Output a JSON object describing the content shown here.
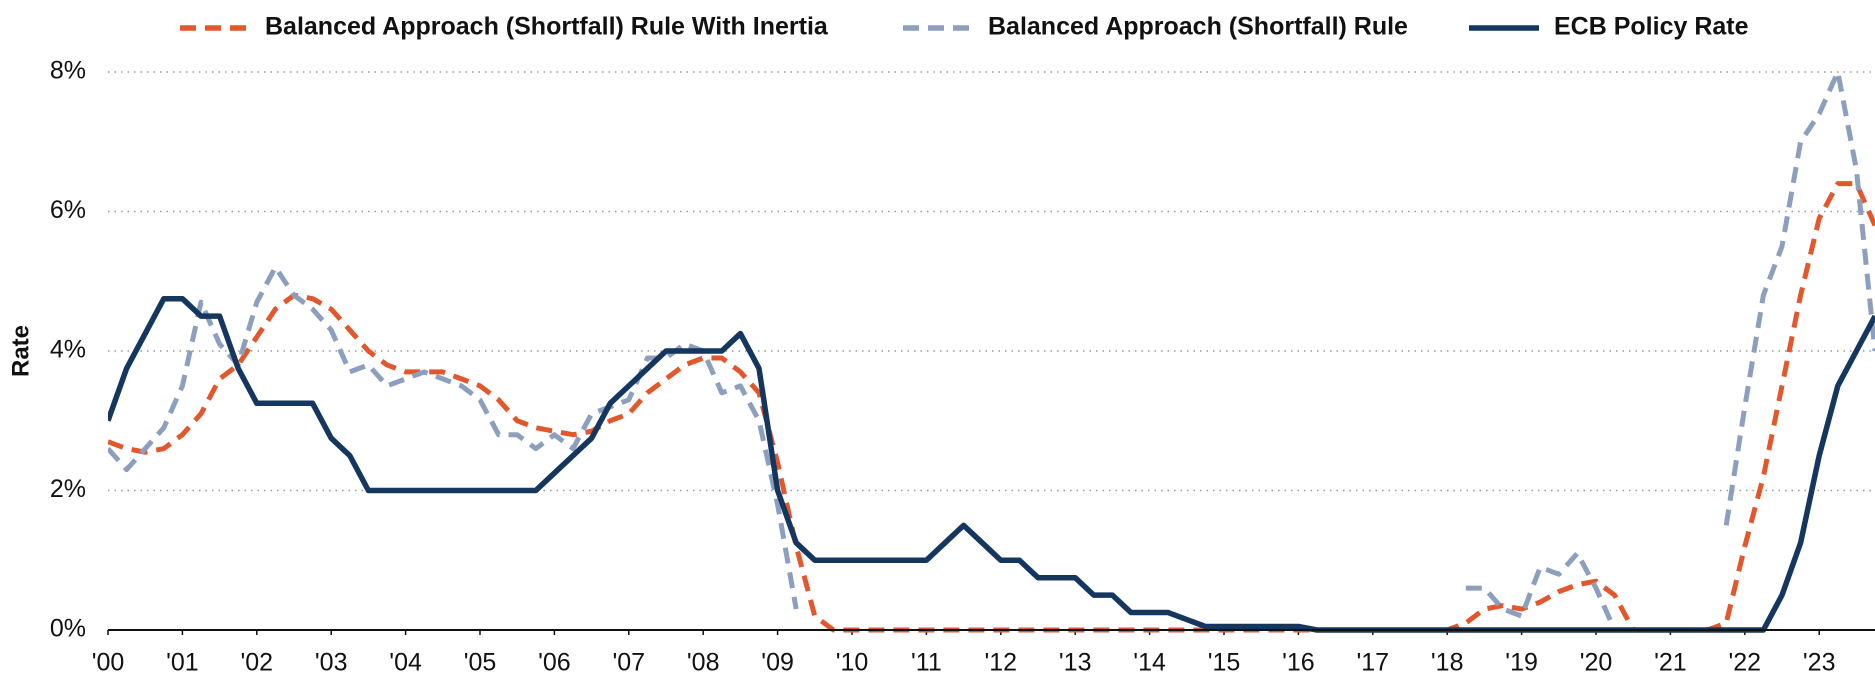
{
  "chart_data": {
    "type": "line",
    "ylabel": "Rate",
    "xlim": [
      2000,
      2023.75
    ],
    "xticks": [
      {
        "value": 2000,
        "label": "'00"
      },
      {
        "value": 2001,
        "label": "'01"
      },
      {
        "value": 2002,
        "label": "'02"
      },
      {
        "value": 2003,
        "label": "'03"
      },
      {
        "value": 2004,
        "label": "'04"
      },
      {
        "value": 2005,
        "label": "'05"
      },
      {
        "value": 2006,
        "label": "'06"
      },
      {
        "value": 2007,
        "label": "'07"
      },
      {
        "value": 2008,
        "label": "'08"
      },
      {
        "value": 2009,
        "label": "'09"
      },
      {
        "value": 2010,
        "label": "'10"
      },
      {
        "value": 2011,
        "label": "'11"
      },
      {
        "value": 2012,
        "label": "'12"
      },
      {
        "value": 2013,
        "label": "'13"
      },
      {
        "value": 2014,
        "label": "'14"
      },
      {
        "value": 2015,
        "label": "'15"
      },
      {
        "value": 2016,
        "label": "'16"
      },
      {
        "value": 2017,
        "label": "'17"
      },
      {
        "value": 2018,
        "label": "'18"
      },
      {
        "value": 2019,
        "label": "'19"
      },
      {
        "value": 2020,
        "label": "'20"
      },
      {
        "value": 2021,
        "label": "'21"
      },
      {
        "value": 2022,
        "label": "'22"
      },
      {
        "value": 2023,
        "label": "'23"
      }
    ],
    "ylim": [
      0,
      8
    ],
    "yticks": [
      {
        "value": 0,
        "label": "0%"
      },
      {
        "value": 2,
        "label": "2%"
      },
      {
        "value": 4,
        "label": "4%"
      },
      {
        "value": 6,
        "label": "6%"
      },
      {
        "value": 8,
        "label": "8%"
      }
    ],
    "grid": true,
    "legend": "top",
    "x": [
      2000,
      2000.25,
      2000.5,
      2000.75,
      2001,
      2001.25,
      2001.5,
      2001.75,
      2002,
      2002.25,
      2002.5,
      2002.75,
      2003,
      2003.25,
      2003.5,
      2003.75,
      2004,
      2004.25,
      2004.5,
      2004.75,
      2005,
      2005.25,
      2005.5,
      2005.75,
      2006,
      2006.25,
      2006.5,
      2006.75,
      2007,
      2007.25,
      2007.5,
      2007.75,
      2008,
      2008.25,
      2008.5,
      2008.75,
      2009,
      2009.25,
      2009.5,
      2009.75,
      2010,
      2010.25,
      2010.5,
      2010.75,
      2011,
      2011.25,
      2011.5,
      2011.75,
      2012,
      2012.25,
      2012.5,
      2012.75,
      2013,
      2013.25,
      2013.5,
      2013.75,
      2014,
      2014.25,
      2014.5,
      2014.75,
      2015,
      2015.25,
      2015.5,
      2015.75,
      2016,
      2016.25,
      2016.5,
      2016.75,
      2017,
      2017.25,
      2017.5,
      2017.75,
      2018,
      2018.25,
      2018.5,
      2018.75,
      2019,
      2019.25,
      2019.5,
      2019.75,
      2020,
      2020.25,
      2020.5,
      2020.75,
      2021,
      2021.25,
      2021.5,
      2021.75,
      2022,
      2022.25,
      2022.5,
      2022.75,
      2023,
      2023.25,
      2023.5,
      2023.75
    ],
    "series": [
      {
        "name": "Balanced Approach (Shortfall) Rule With Inertia",
        "color": "#e2572b",
        "dashed": true,
        "values": [
          2.7,
          2.6,
          2.55,
          2.6,
          2.8,
          3.1,
          3.6,
          3.8,
          4.2,
          4.6,
          4.8,
          4.75,
          4.6,
          4.3,
          4.0,
          3.8,
          3.7,
          3.7,
          3.7,
          3.6,
          3.5,
          3.3,
          3.0,
          2.9,
          2.85,
          2.8,
          2.85,
          3.0,
          3.1,
          3.4,
          3.6,
          3.8,
          3.9,
          3.9,
          3.7,
          3.4,
          2.4,
          1.2,
          0.2,
          0,
          0,
          0,
          0,
          0,
          0,
          0,
          0,
          0,
          0,
          0,
          0,
          0,
          0,
          0,
          0,
          0,
          0,
          0,
          0,
          0,
          0,
          0,
          0,
          0,
          0,
          0,
          0,
          0,
          0,
          0,
          0,
          0,
          0,
          0.1,
          0.3,
          0.35,
          0.3,
          0.4,
          0.55,
          0.65,
          0.7,
          0.5,
          0,
          0,
          0,
          0,
          0,
          0.1,
          1.2,
          2.2,
          3.5,
          4.8,
          5.9,
          6.4,
          6.4,
          5.8
        ]
      },
      {
        "name": "Balanced Approach (Shortfall) Rule",
        "color": "#8d9fbf",
        "dashed": true,
        "values": [
          2.6,
          2.3,
          2.6,
          2.9,
          3.5,
          4.7,
          4.1,
          3.8,
          4.7,
          5.2,
          4.8,
          4.6,
          4.3,
          3.7,
          3.8,
          3.5,
          3.6,
          3.7,
          3.6,
          3.5,
          3.3,
          2.8,
          2.8,
          2.6,
          2.8,
          2.6,
          3.1,
          3.2,
          3.3,
          3.9,
          3.9,
          4.1,
          4.0,
          3.4,
          3.5,
          3.0,
          1.8,
          0.3,
          null,
          null,
          null,
          null,
          null,
          null,
          null,
          null,
          null,
          null,
          null,
          null,
          null,
          null,
          null,
          null,
          null,
          null,
          null,
          null,
          null,
          null,
          null,
          null,
          null,
          null,
          null,
          null,
          null,
          null,
          null,
          null,
          null,
          null,
          null,
          0.6,
          0.6,
          0.3,
          0.2,
          0.9,
          0.8,
          1.1,
          0.6,
          0,
          null,
          null,
          null,
          null,
          null,
          1.5,
          3.2,
          4.8,
          5.5,
          7.0,
          7.4,
          8.0,
          6.6,
          4.0
        ]
      },
      {
        "name": "ECB Policy Rate",
        "color": "#15375f",
        "dashed": false,
        "values": [
          3.0,
          3.75,
          4.25,
          4.75,
          4.75,
          4.5,
          4.5,
          3.75,
          3.25,
          3.25,
          3.25,
          3.25,
          2.75,
          2.5,
          2.0,
          2.0,
          2,
          2,
          2,
          2,
          2,
          2,
          2,
          2,
          2.25,
          2.5,
          2.75,
          3.25,
          3.5,
          3.75,
          4,
          4,
          4,
          4,
          4.25,
          3.75,
          2,
          1.25,
          1,
          1,
          1,
          1,
          1,
          1,
          1,
          1.25,
          1.5,
          1.25,
          1,
          1,
          0.75,
          0.75,
          0.75,
          0.5,
          0.5,
          0.25,
          0.25,
          0.25,
          0.15,
          0.05,
          0.05,
          0.05,
          0.05,
          0.05,
          0.05,
          0,
          0,
          0,
          0,
          0,
          0,
          0,
          0,
          0,
          0,
          0,
          0,
          0,
          0,
          0,
          0,
          0,
          0,
          0,
          0,
          0,
          0,
          0,
          0,
          0,
          0.5,
          1.25,
          2.5,
          3.5,
          4,
          4.5
        ]
      }
    ]
  }
}
